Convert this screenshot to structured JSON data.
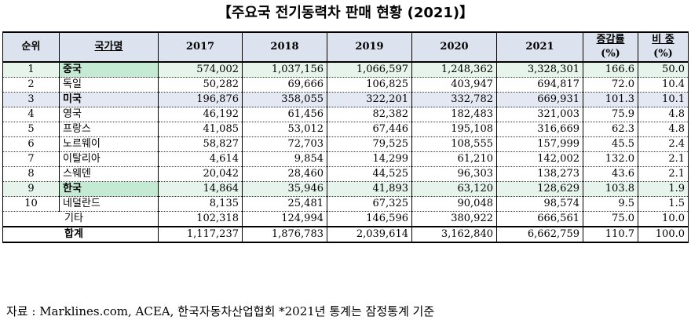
{
  "title": "【주요국 전기동력차 판매 현황 (2021)】",
  "headers": {
    "rank": "순위",
    "country": "국가명",
    "y2017": "2017",
    "y2018": "2018",
    "y2019": "2019",
    "y2020": "2020",
    "y2021": "2021",
    "change_top": "증감률",
    "change_bot": "(%)",
    "share_top": "비 중",
    "share_bot": "(%)"
  },
  "rows": [
    {
      "rank": "1",
      "country": "중국",
      "v2017": "574,002",
      "v2018": "1,037,156",
      "v2019": "1,066,597",
      "v2020": "1,248,362",
      "v2021": "3,328,301",
      "change": "166.6",
      "share": "50.0"
    },
    {
      "rank": "2",
      "country": "독일",
      "v2017": "50,282",
      "v2018": "69,666",
      "v2019": "106,825",
      "v2020": "403,947",
      "v2021": "694,817",
      "change": "72.0",
      "share": "10.4"
    },
    {
      "rank": "3",
      "country": "미국",
      "v2017": "196,876",
      "v2018": "358,055",
      "v2019": "322,201",
      "v2020": "332,782",
      "v2021": "669,931",
      "change": "101.3",
      "share": "10.1"
    },
    {
      "rank": "4",
      "country": "영국",
      "v2017": "46,192",
      "v2018": "61,456",
      "v2019": "82,382",
      "v2020": "182,483",
      "v2021": "321,003",
      "change": "75.9",
      "share": "4.8"
    },
    {
      "rank": "5",
      "country": "프랑스",
      "v2017": "41,085",
      "v2018": "53,012",
      "v2019": "67,446",
      "v2020": "195,108",
      "v2021": "316,669",
      "change": "62.3",
      "share": "4.8"
    },
    {
      "rank": "6",
      "country": "노르웨이",
      "v2017": "58,827",
      "v2018": "72,703",
      "v2019": "79,525",
      "v2020": "108,555",
      "v2021": "157,999",
      "change": "45.5",
      "share": "2.4"
    },
    {
      "rank": "7",
      "country": "이탈리아",
      "v2017": "4,614",
      "v2018": "9,854",
      "v2019": "14,299",
      "v2020": "61,210",
      "v2021": "142,002",
      "change": "132.0",
      "share": "2.1"
    },
    {
      "rank": "8",
      "country": "스웨덴",
      "v2017": "20,042",
      "v2018": "28,460",
      "v2019": "44,525",
      "v2020": "96,303",
      "v2021": "138,273",
      "change": "43.6",
      "share": "2.1"
    },
    {
      "rank": "9",
      "country": "한국",
      "v2017": "14,864",
      "v2018": "35,946",
      "v2019": "41,893",
      "v2020": "63,120",
      "v2021": "128,629",
      "change": "103.8",
      "share": "1.9"
    },
    {
      "rank": "10",
      "country": "네덜란드",
      "v2017": "8,135",
      "v2018": "25,481",
      "v2019": "67,325",
      "v2020": "90,048",
      "v2021": "98,574",
      "change": "9.5",
      "share": "1.5"
    }
  ],
  "etc": {
    "label": "기타",
    "v2017": "102,318",
    "v2018": "124,994",
    "v2019": "146,596",
    "v2020": "380,922",
    "v2021": "666,561",
    "change": "75.0",
    "share": "10.0"
  },
  "total": {
    "label": "합계",
    "v2017": "1,117,237",
    "v2018": "1,876,783",
    "v2019": "2,039,614",
    "v2020": "3,162,840",
    "v2021": "6,662,759",
    "change": "110.7",
    "share": "100.0"
  },
  "source": "자료 : Marklines.com, ACEA, 한국자동차산업협회 *2021년 통계는 잠정통계 기준",
  "colors": {
    "header_bg": "#dde3ee",
    "highlight_green": "#c5ead3",
    "highlight_blue": "#e4e8f2"
  }
}
